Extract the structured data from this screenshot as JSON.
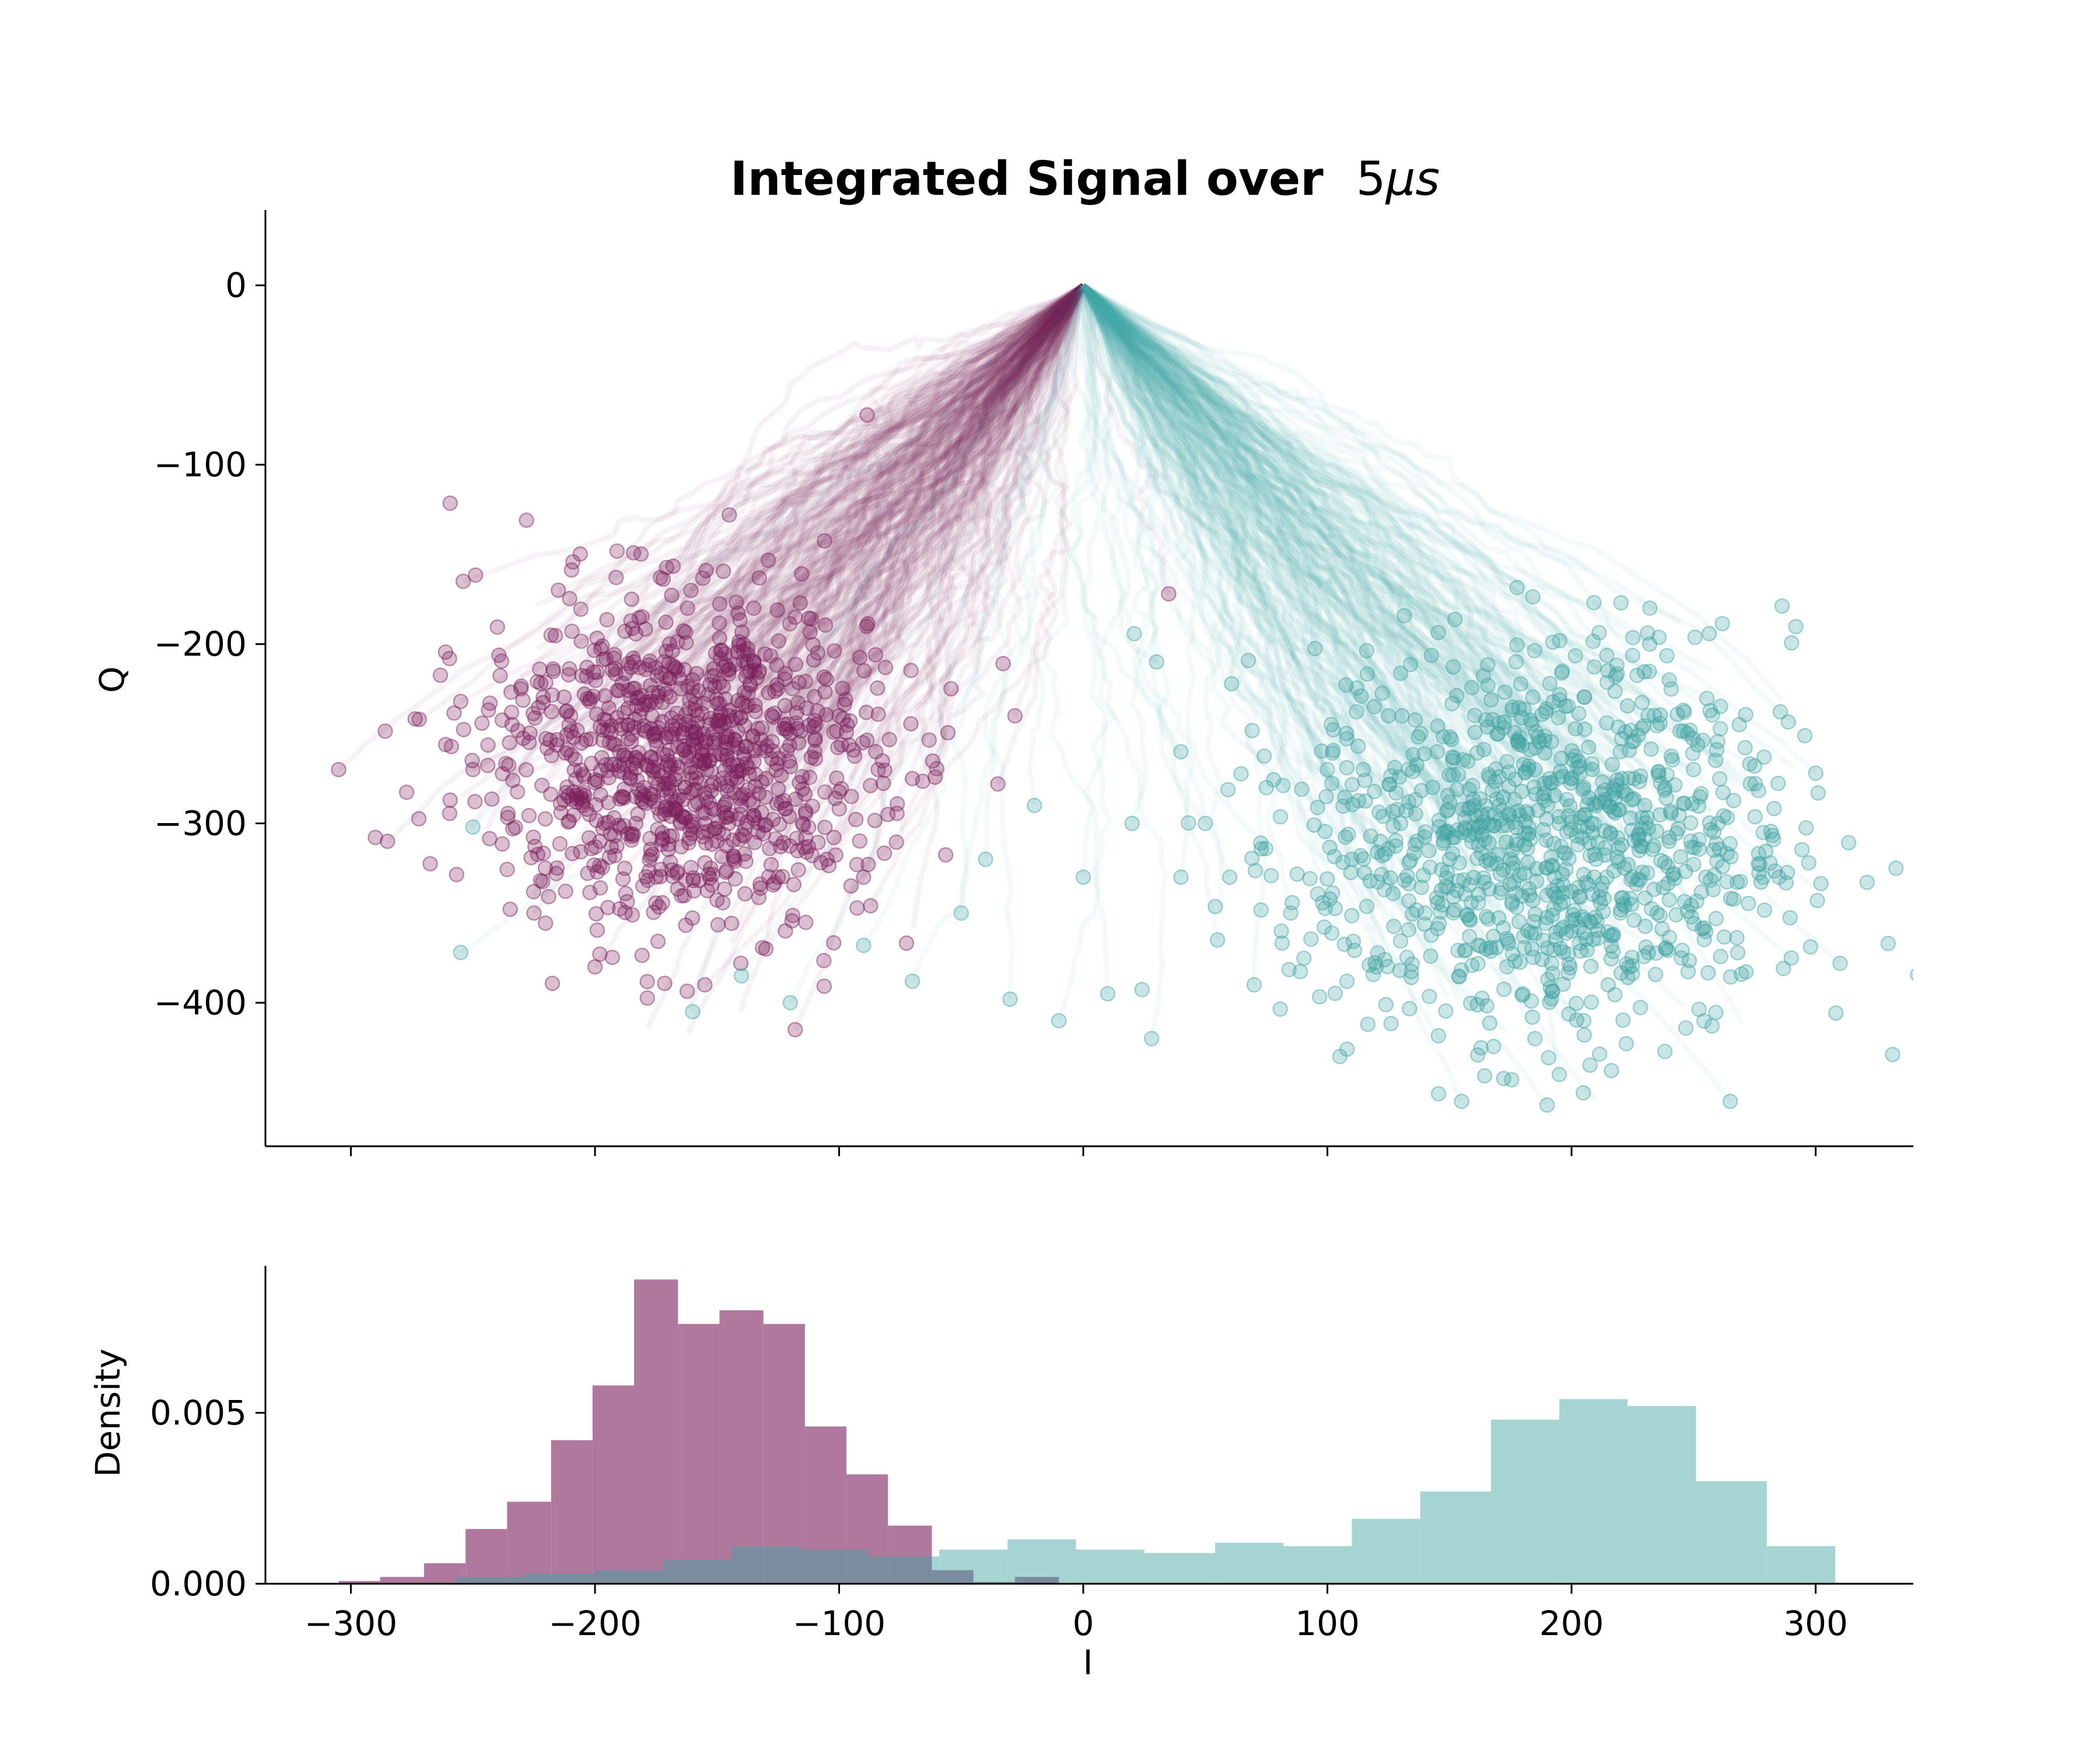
{
  "chart_data": [
    {
      "type": "scatter",
      "title": "Integrated Signal over",
      "title_math_value": "5",
      "title_math_unit": "μs",
      "xlabel": "",
      "ylabel": "Q",
      "xlim": [
        -335,
        340
      ],
      "ylim": [
        -480,
        42
      ],
      "x_ticks": [
        -300,
        -200,
        -100,
        0,
        100,
        200,
        300
      ],
      "y_ticks": [
        0,
        -100,
        -200,
        -300,
        -400
      ],
      "y_tick_labels": [
        "0",
        "−100",
        "−200",
        "−300",
        "−400"
      ],
      "x_tick_labels_shown": false,
      "spines": "left-bottom",
      "trajectory_origin": [
        0,
        0
      ],
      "series": [
        {
          "color": "#7a1e5a",
          "centroid": [
            -165,
            -265
          ],
          "spread": [
            40,
            45
          ],
          "trajectory_count_approx": 250,
          "endpoints_sample": [
            [
              -305,
              -270
            ],
            [
              -285,
              -310
            ],
            [
              -272,
              -242
            ],
            [
              -255,
              -232
            ],
            [
              -254,
              -165
            ],
            [
              -250,
              -270
            ],
            [
              -243,
              -233
            ],
            [
              -235,
              -255
            ],
            [
              -225,
              -350
            ],
            [
              -218,
              -195
            ],
            [
              -210,
              -240
            ],
            [
              -205,
              -290
            ],
            [
              -198,
              -310
            ],
            [
              -190,
              -260
            ],
            [
              -184,
              -210
            ],
            [
              -180,
              -280
            ],
            [
              -175,
              -330
            ],
            [
              -170,
              -250
            ],
            [
              -165,
              -300
            ],
            [
              -160,
              -220
            ],
            [
              -155,
              -265
            ],
            [
              -150,
              -310
            ],
            [
              -145,
              -240
            ],
            [
              -140,
              -290
            ],
            [
              -135,
              -210
            ],
            [
              -130,
              -275
            ],
            [
              -125,
              -330
            ],
            [
              -120,
              -250
            ],
            [
              -115,
              -300
            ],
            [
              -110,
              -260
            ],
            [
              -105,
              -320
            ],
            [
              -100,
              -240
            ],
            [
              -95,
              -285
            ],
            [
              -90,
              -330
            ],
            [
              -85,
              -260
            ],
            [
              -80,
              -295
            ],
            [
              -155,
              -390
            ],
            [
              -130,
              -370
            ],
            [
              -118,
              -415
            ],
            [
              -200,
              -380
            ],
            [
              -215,
              -170
            ],
            [
              -185,
              -175
            ],
            [
              -165,
              -225
            ],
            [
              -145,
              -128
            ],
            [
              -135,
              -180
            ],
            [
              -28,
              -240
            ],
            [
              -35,
              -278
            ],
            [
              -70,
              -275
            ],
            [
              35,
              -172
            ]
          ]
        },
        {
          "color": "#3fa3a2",
          "centroid": [
            190,
            -310
          ],
          "spread": [
            50,
            55
          ],
          "trajectory_count_approx": 250,
          "endpoints_sample": [
            [
              100,
              -270
            ],
            [
              110,
              -320
            ],
            [
              120,
              -380
            ],
            [
              125,
              -240
            ],
            [
              130,
              -300
            ],
            [
              140,
              -350
            ],
            [
              145,
              -260
            ],
            [
              150,
              -320
            ],
            [
              155,
              -455
            ],
            [
              160,
              -290
            ],
            [
              165,
              -370
            ],
            [
              170,
              -250
            ],
            [
              175,
              -320
            ],
            [
              180,
              -395
            ],
            [
              185,
              -270
            ],
            [
              190,
              -340
            ],
            [
              195,
              -300
            ],
            [
              200,
              -360
            ],
            [
              205,
              -280
            ],
            [
              210,
              -320
            ],
            [
              215,
              -390
            ],
            [
              220,
              -260
            ],
            [
              225,
              -330
            ],
            [
              230,
              -290
            ],
            [
              235,
              -350
            ],
            [
              240,
              -310
            ],
            [
              245,
              -375
            ],
            [
              250,
              -270
            ],
            [
              255,
              -330
            ],
            [
              260,
              -300
            ],
            [
              265,
              -455
            ],
            [
              275,
              -268
            ],
            [
              285,
              -330
            ],
            [
              290,
              -375
            ],
            [
              300,
              -272
            ],
            [
              310,
              -378
            ],
            [
              185,
              -420
            ],
            [
              195,
              -440
            ],
            [
              205,
              -410
            ],
            [
              232,
              -200
            ],
            [
              240,
              -220
            ],
            [
              190,
              -457
            ],
            [
              -255,
              -372
            ],
            [
              -250,
              -302
            ],
            [
              -160,
              -405
            ],
            [
              -140,
              -385
            ],
            [
              -120,
              -400
            ],
            [
              -90,
              -368
            ],
            [
              -70,
              -388
            ],
            [
              -50,
              -350
            ],
            [
              -30,
              -398
            ],
            [
              -10,
              -410
            ],
            [
              10,
              -395
            ],
            [
              28,
              -420
            ],
            [
              40,
              -330
            ],
            [
              55,
              -365
            ],
            [
              70,
              -390
            ],
            [
              85,
              -350
            ],
            [
              30,
              -210
            ],
            [
              40,
              -260
            ],
            [
              50,
              -300
            ],
            [
              60,
              -330
            ],
            [
              75,
              -280
            ],
            [
              20,
              -300
            ],
            [
              0,
              -330
            ],
            [
              -20,
              -290
            ],
            [
              -40,
              -320
            ]
          ]
        }
      ]
    },
    {
      "type": "histogram",
      "xlabel": "I",
      "ylabel": "Density",
      "xlim": [
        -335,
        340
      ],
      "ylim": [
        0,
        0.0093
      ],
      "x_ticks": [
        -300,
        -200,
        -100,
        0,
        100,
        200,
        300
      ],
      "x_tick_labels": [
        "−300",
        "−200",
        "−100",
        "0",
        "100",
        "200",
        "300"
      ],
      "y_ticks": [
        0,
        0.005
      ],
      "y_tick_labels": [
        "0.000",
        "0.005"
      ],
      "spines": "left-bottom",
      "series": [
        {
          "color": "#7a1e5a",
          "alpha": 0.6,
          "bin_edges": [
            -305,
            -288,
            -270,
            -253,
            -236,
            -218,
            -201,
            -184,
            -166,
            -149,
            -131,
            -114,
            -97,
            -80,
            -62,
            -45,
            -28,
            -10
          ],
          "values": [
            8e-05,
            0.0002,
            0.0006,
            0.0016,
            0.0024,
            0.0042,
            0.0058,
            0.0089,
            0.0076,
            0.008,
            0.0076,
            0.0046,
            0.0032,
            0.0017,
            0.0004,
            5e-05,
            0.0002
          ]
        },
        {
          "color": "#3fa3a2",
          "alpha": 0.47,
          "bin_edges": [
            -257,
            -229,
            -200,
            -172,
            -144,
            -116,
            -88,
            -59,
            -31,
            -3,
            25,
            54,
            82,
            110,
            138,
            167,
            195,
            223,
            251,
            280,
            308
          ],
          "values": [
            0.0002,
            0.0003,
            0.0004,
            0.0007,
            0.0011,
            0.001,
            0.0008,
            0.001,
            0.0013,
            0.001,
            0.0009,
            0.0012,
            0.0011,
            0.0019,
            0.0027,
            0.0048,
            0.0054,
            0.0052,
            0.003,
            0.0011,
            0.0001
          ]
        }
      ]
    }
  ]
}
